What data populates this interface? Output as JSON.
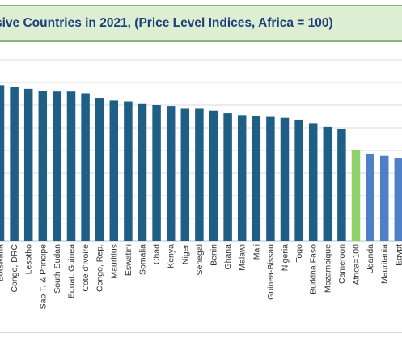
{
  "chart_data": {
    "type": "bar",
    "title": "sive Countries  in 2021, (Price Level Indices, Africa = 100)",
    "xlabel": "",
    "ylabel": "",
    "ylim": [
      0,
      200
    ],
    "grid": true,
    "categories": [
      "Botswana",
      "Congo, DRC",
      "Lesotho",
      "Sao T. & Principe",
      "South Sudan",
      "Equat. Guinea",
      "Cote d'Ivoire",
      "Congo, Rep.",
      "Mauritius",
      "Eswatini",
      "Somalia",
      "Chad",
      "Kenya",
      "Niger",
      "Senegal",
      "Benin",
      "Ghana",
      "Malawi",
      "Mali",
      "Guinea-Bissau",
      "Nigeria",
      "Togo",
      "Burkina Faso",
      "Mozambique",
      "Cameroon",
      "Africa=100",
      "Uganda",
      "Mauritania",
      "Egypt"
    ],
    "values": [
      172,
      170,
      168,
      166,
      165,
      165,
      163,
      158,
      155,
      154,
      152,
      150,
      149,
      146,
      146,
      144,
      141,
      139,
      138,
      137,
      136,
      134,
      130,
      126,
      124,
      100,
      96,
      94,
      91
    ],
    "colors": {
      "default": "#1f5f86",
      "Africa=100": "#8fd16a",
      "after": "#4f7fc4"
    }
  }
}
